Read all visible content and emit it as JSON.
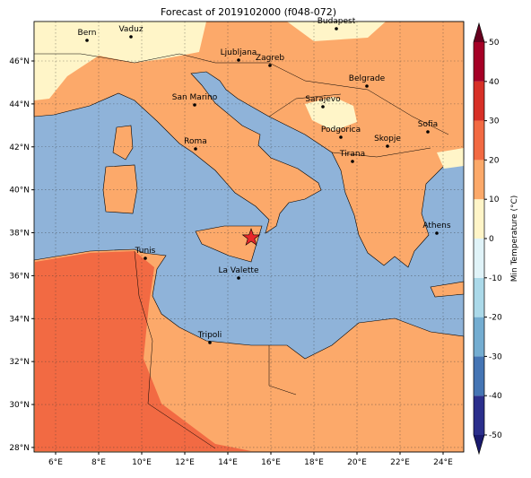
{
  "title": "Forecast of 2019102000 (f048-072)",
  "map": {
    "xticks": [
      {
        "value": 6,
        "label": "6°E"
      },
      {
        "value": 8,
        "label": "8°E"
      },
      {
        "value": 10,
        "label": "10°E"
      },
      {
        "value": 12,
        "label": "12°E"
      },
      {
        "value": 14,
        "label": "14°E"
      },
      {
        "value": 16,
        "label": "16°E"
      },
      {
        "value": 18,
        "label": "18°E"
      },
      {
        "value": 20,
        "label": "20°E"
      },
      {
        "value": 22,
        "label": "22°E"
      },
      {
        "value": 24,
        "label": "24°E"
      }
    ],
    "yticks": [
      {
        "value": 28,
        "label": "28°N"
      },
      {
        "value": 30,
        "label": "30°N"
      },
      {
        "value": 32,
        "label": "32°N"
      },
      {
        "value": 34,
        "label": "34°N"
      },
      {
        "value": 36,
        "label": "36°N"
      },
      {
        "value": 38,
        "label": "38°N"
      },
      {
        "value": 40,
        "label": "40°N"
      },
      {
        "value": 42,
        "label": "42°N"
      },
      {
        "value": 44,
        "label": "44°N"
      },
      {
        "value": 46,
        "label": "46°N"
      }
    ],
    "cities": [
      "Bern",
      "Vaduz",
      "Budapest",
      "Ljubljana",
      "Zagreb",
      "Belgrade",
      "San Marino",
      "Sarajevo",
      "Sofia",
      "Podgorica",
      "Skopje",
      "Roma",
      "Tirana",
      "Athens",
      "Tunis",
      "La Valette",
      "Tripoli"
    ]
  },
  "colorbar": {
    "label": "Min Temperature (°C)",
    "ticks": [
      -50,
      -40,
      -30,
      -20,
      -10,
      0,
      10,
      20,
      30,
      40,
      50
    ],
    "colors": [
      "#2b2f8c",
      "#4575b4",
      "#74add1",
      "#abd9e9",
      "#e0f3f8",
      "#fff5c8",
      "#fca96a",
      "#f26a43",
      "#d73027",
      "#a50026"
    ],
    "under_color": "#1a1a6e",
    "over_color": "#67001f"
  }
}
